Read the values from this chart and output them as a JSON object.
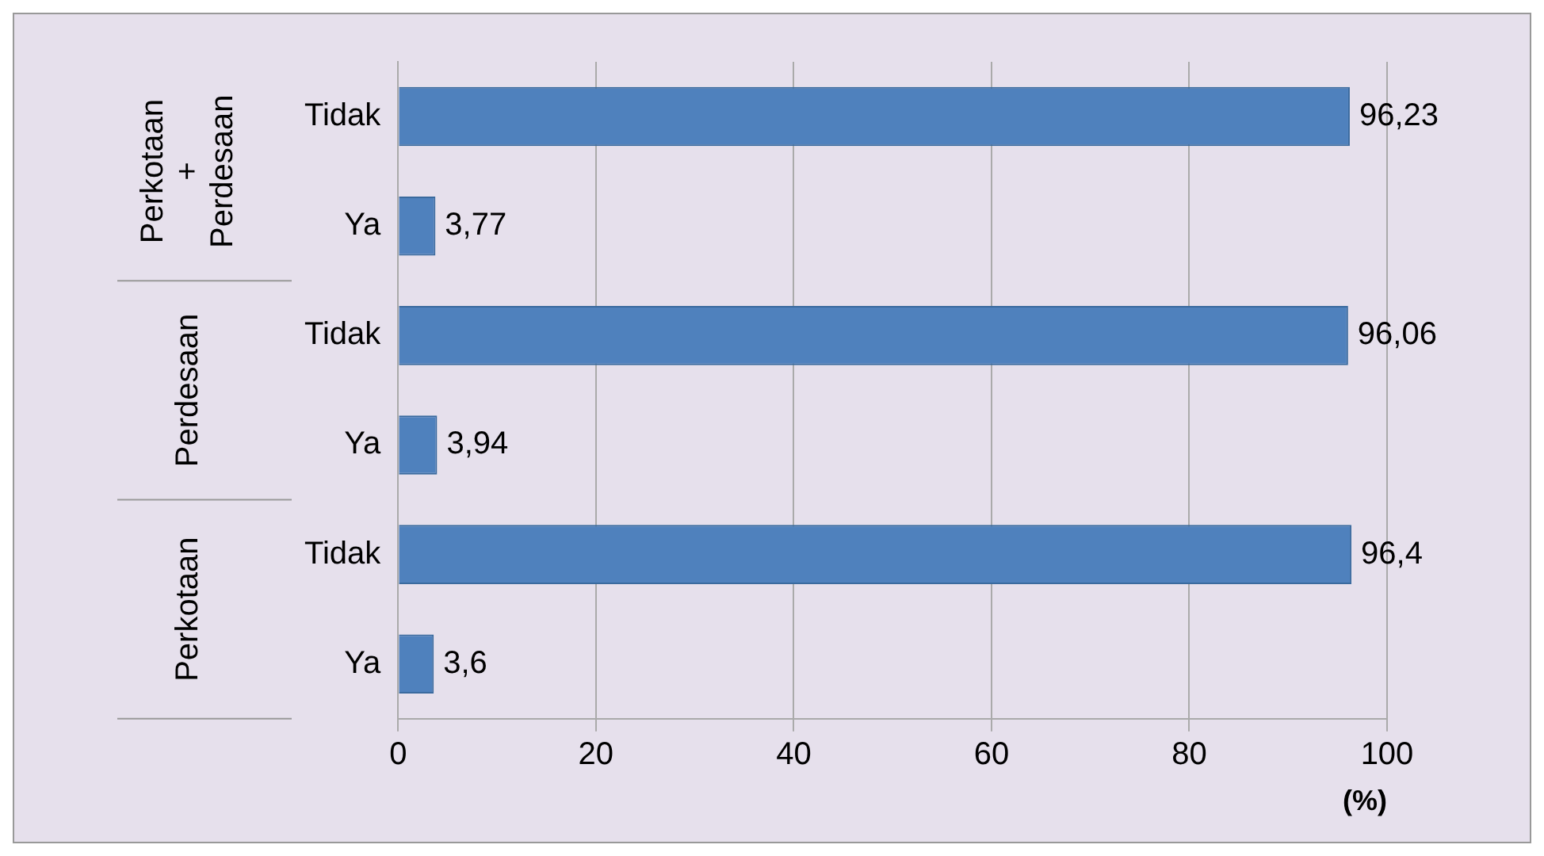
{
  "chart_data": {
    "type": "bar",
    "orientation": "horizontal",
    "categories": [
      "Tidak",
      "Ya",
      "Tidak",
      "Ya",
      "Tidak",
      "Ya"
    ],
    "values": [
      96.23,
      3.77,
      96.06,
      3.94,
      96.4,
      3.6
    ],
    "value_labels": [
      "96,23",
      "3,77",
      "96,06",
      "3,94",
      "96,4",
      "3,6"
    ],
    "color": "#4f81bd",
    "xlim": [
      0,
      100
    ],
    "xticks": [
      0,
      20,
      40,
      60,
      80,
      100
    ],
    "xlabel": "(%)",
    "grid": "x",
    "legend": false,
    "annotations": [
      "Perkotaan + Perdesaan",
      "Perdesaan",
      "Perkotaan"
    ]
  }
}
